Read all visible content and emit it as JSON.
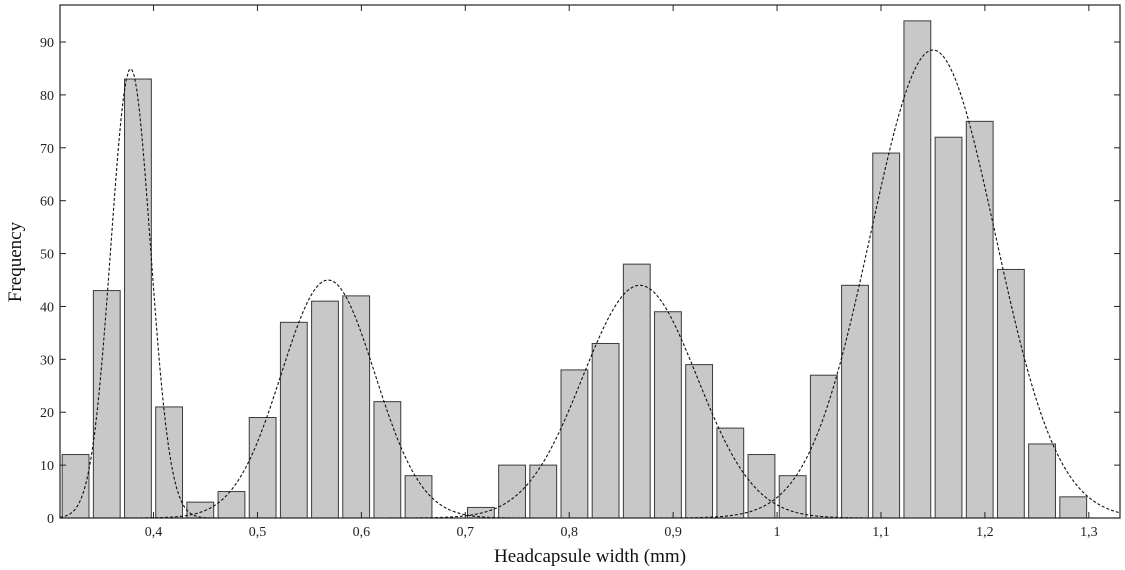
{
  "chart_data": {
    "type": "bar",
    "title": "",
    "xlabel": "Headcapsule width (mm)",
    "ylabel": "Frequency",
    "xlim": [
      0.31,
      1.33
    ],
    "ylim": [
      0,
      97
    ],
    "x_ticks": [
      0.4,
      0.5,
      0.6,
      0.7,
      0.8,
      0.9,
      1,
      1.1,
      1.2,
      1.3
    ],
    "x_tick_labels": [
      "0,4",
      "0,5",
      "0,6",
      "0,7",
      "0,8",
      "0,9",
      "1",
      "1,1",
      "1,2",
      "1,3"
    ],
    "y_ticks": [
      0,
      10,
      20,
      30,
      40,
      50,
      60,
      70,
      80,
      90
    ],
    "y_tick_labels": [
      "0",
      "10",
      "20",
      "30",
      "40",
      "50",
      "60",
      "70",
      "80",
      "90"
    ],
    "bin_width": 0.03,
    "bars": {
      "x": [
        0.325,
        0.355,
        0.385,
        0.415,
        0.445,
        0.475,
        0.505,
        0.535,
        0.565,
        0.595,
        0.625,
        0.655,
        0.685,
        0.715,
        0.745,
        0.775,
        0.805,
        0.835,
        0.865,
        0.895,
        0.925,
        0.955,
        0.985,
        1.015,
        1.045,
        1.075,
        1.105,
        1.135,
        1.165,
        1.195,
        1.225,
        1.255,
        1.285
      ],
      "values": [
        12,
        43,
        83,
        21,
        3,
        5,
        19,
        37,
        41,
        42,
        22,
        8,
        0,
        2,
        10,
        10,
        28,
        33,
        48,
        39,
        29,
        17,
        12,
        8,
        27,
        44,
        69,
        94,
        72,
        75,
        47,
        14,
        4
      ]
    },
    "fitted_curves": [
      {
        "mean": 0.378,
        "sd": 0.019,
        "peak": 85
      },
      {
        "mean": 0.568,
        "sd": 0.045,
        "peak": 45
      },
      {
        "mean": 0.868,
        "sd": 0.055,
        "peak": 44
      },
      {
        "mean": 1.15,
        "sd": 0.06,
        "peak": 88.5
      }
    ],
    "grid": false,
    "legend": "none"
  }
}
